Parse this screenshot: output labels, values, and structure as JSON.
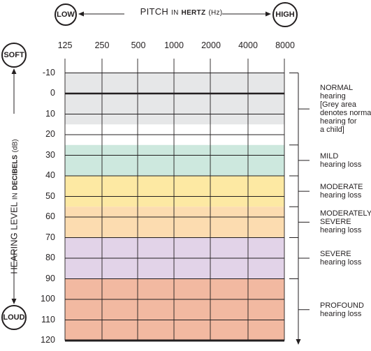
{
  "chart_data": {
    "type": "table",
    "title_parts": {
      "pitch": "PITCH",
      "in1": "IN",
      "hertz": "HERTZ",
      "unit": "(Hz)"
    },
    "x_low_label": "LOW",
    "x_high_label": "HIGH",
    "x_ticks": [
      "125",
      "250",
      "500",
      "1000",
      "2000",
      "4000",
      "8000"
    ],
    "y_soft_label": "SOFT",
    "y_loud_label": "LOUD",
    "y_title_parts": {
      "hearing": "HEARING LEVEL",
      "in": "IN",
      "decibels": "DECIBELS",
      "unit": "(dB)"
    },
    "y_ticks": [
      -10,
      0,
      10,
      20,
      30,
      40,
      50,
      60,
      70,
      80,
      90,
      100,
      110,
      120
    ],
    "ylim": [
      -10,
      120
    ],
    "y_inverted": true,
    "bands": [
      {
        "from": -10,
        "to": 15,
        "color": "#e6e7e8",
        "label_lines": [
          "NORMAL",
          "hearing",
          "[Grey area",
          "denotes normal",
          "hearing for",
          "a child]"
        ],
        "bracket": [
          -10,
          25
        ]
      },
      {
        "from": 25,
        "to": 40,
        "color": "#cde8de",
        "label_lines": [
          "MILD",
          "hearing loss"
        ],
        "bracket": [
          25,
          40
        ]
      },
      {
        "from": 40,
        "to": 55,
        "color": "#fde9a3",
        "label_lines": [
          "MODERATE",
          "hearing loss"
        ],
        "bracket": [
          40,
          55
        ]
      },
      {
        "from": 55,
        "to": 70,
        "color": "#fcdcb0",
        "label_lines": [
          "MODERATELY",
          "SEVERE",
          "hearing loss"
        ],
        "bracket": [
          55,
          70
        ]
      },
      {
        "from": 70,
        "to": 90,
        "color": "#e2d3e8",
        "label_lines": [
          "SEVERE",
          "hearing loss"
        ],
        "bracket": [
          70,
          90
        ]
      },
      {
        "from": 90,
        "to": 120,
        "color": "#f2b9a1",
        "label_lines": [
          "PROFOUND",
          "hearing loss"
        ],
        "bracket": [
          90,
          120
        ]
      }
    ],
    "grid": true,
    "zero_line_bold": true
  }
}
